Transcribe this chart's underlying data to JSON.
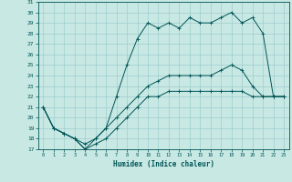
{
  "title": "",
  "xlabel": "Humidex (Indice chaleur)",
  "x": [
    0,
    1,
    2,
    3,
    4,
    5,
    6,
    7,
    8,
    9,
    10,
    11,
    12,
    13,
    14,
    15,
    16,
    17,
    18,
    19,
    20,
    21,
    22,
    23
  ],
  "line1": [
    21,
    19,
    18.5,
    18,
    17.5,
    18,
    19,
    22,
    25,
    27.5,
    29,
    28.5,
    29,
    28.5,
    29.5,
    29,
    29,
    29.5,
    30,
    29,
    29.5,
    28,
    22,
    22
  ],
  "line2": [
    21,
    19,
    18.5,
    18,
    17,
    18,
    19,
    20,
    21,
    22,
    23,
    23.5,
    24,
    24,
    24,
    24,
    24,
    24.5,
    25,
    24.5,
    23,
    22,
    22,
    22
  ],
  "line3": [
    21,
    19,
    18.5,
    18,
    17,
    17.5,
    18,
    19,
    20,
    21,
    22,
    22,
    22.5,
    22.5,
    22.5,
    22.5,
    22.5,
    22.5,
    22.5,
    22.5,
    22,
    22,
    22,
    22
  ],
  "bg_color": "#c8e8e4",
  "grid_color": "#9ecece",
  "line_color": "#005555",
  "ylim": [
    17,
    31
  ],
  "xlim": [
    -0.5,
    23.5
  ],
  "yticks": [
    17,
    18,
    19,
    20,
    21,
    22,
    23,
    24,
    25,
    26,
    27,
    28,
    29,
    30,
    31
  ],
  "xticks": [
    0,
    1,
    2,
    3,
    4,
    5,
    6,
    7,
    8,
    9,
    10,
    11,
    12,
    13,
    14,
    15,
    16,
    17,
    18,
    19,
    20,
    21,
    22,
    23
  ]
}
